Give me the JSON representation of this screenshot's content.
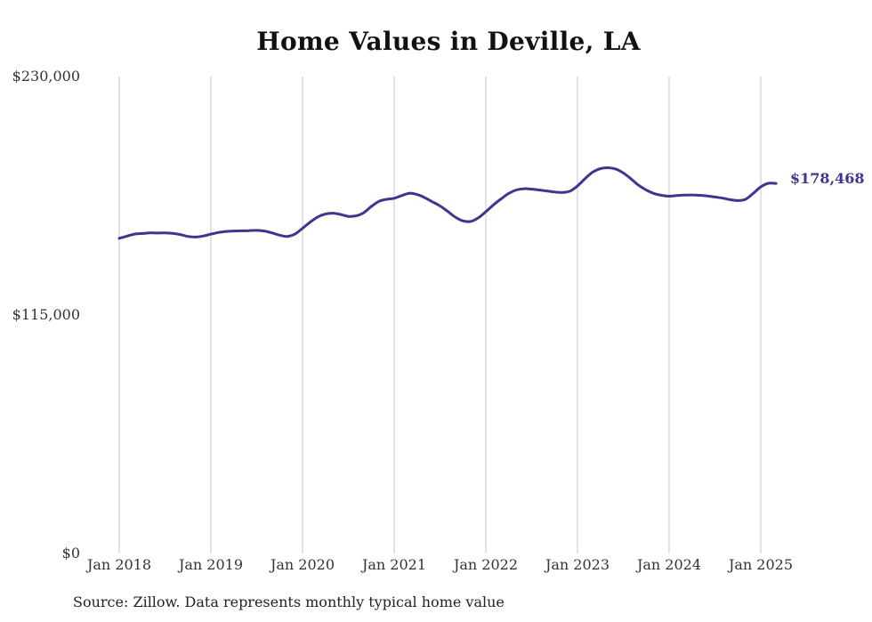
{
  "chart_data": {
    "type": "line",
    "title": "Home Values in Deville, LA",
    "xlabel": "",
    "ylabel": "",
    "ylim": [
      0,
      230000
    ],
    "y_ticks": [
      "$0",
      "$115,000",
      "$230,000"
    ],
    "y_tick_values": [
      0,
      115000,
      230000
    ],
    "x_ticks": [
      "Jan 2018",
      "Jan 2019",
      "Jan 2020",
      "Jan 2021",
      "Jan 2022",
      "Jan 2023",
      "Jan 2024",
      "Jan 2025"
    ],
    "x_tick_values": [
      "2018-01",
      "2019-01",
      "2020-01",
      "2021-01",
      "2022-01",
      "2023-01",
      "2024-01",
      "2025-01"
    ],
    "grid": "vertical",
    "end_label": "$178,468",
    "series": [
      {
        "color": "#3d3590",
        "x": [
          "2018-01",
          "2018-02",
          "2018-03",
          "2018-04",
          "2018-05",
          "2018-06",
          "2018-07",
          "2018-08",
          "2018-09",
          "2018-10",
          "2018-11",
          "2018-12",
          "2019-01",
          "2019-02",
          "2019-03",
          "2019-04",
          "2019-05",
          "2019-06",
          "2019-07",
          "2019-08",
          "2019-09",
          "2019-10",
          "2019-11",
          "2019-12",
          "2020-01",
          "2020-02",
          "2020-03",
          "2020-04",
          "2020-05",
          "2020-06",
          "2020-07",
          "2020-08",
          "2020-09",
          "2020-10",
          "2020-11",
          "2020-12",
          "2021-01",
          "2021-02",
          "2021-03",
          "2021-04",
          "2021-05",
          "2021-06",
          "2021-07",
          "2021-08",
          "2021-09",
          "2021-10",
          "2021-11",
          "2021-12",
          "2022-01",
          "2022-02",
          "2022-03",
          "2022-04",
          "2022-05",
          "2022-06",
          "2022-07",
          "2022-08",
          "2022-09",
          "2022-10",
          "2022-11",
          "2022-12",
          "2023-01",
          "2023-02",
          "2023-03",
          "2023-04",
          "2023-05",
          "2023-06",
          "2023-07",
          "2023-08",
          "2023-09",
          "2023-10",
          "2023-11",
          "2023-12",
          "2024-01",
          "2024-02",
          "2024-03",
          "2024-04",
          "2024-05",
          "2024-06",
          "2024-07",
          "2024-08",
          "2024-09",
          "2024-10",
          "2024-11",
          "2024-12",
          "2025-01",
          "2025-02",
          "2025-03"
        ],
        "values": [
          152000,
          153000,
          154000,
          154300,
          154600,
          154500,
          154600,
          154400,
          153800,
          152900,
          152600,
          153100,
          154000,
          154800,
          155300,
          155500,
          155600,
          155700,
          155800,
          155500,
          154600,
          153500,
          152900,
          154000,
          156800,
          159800,
          162300,
          163700,
          164100,
          163500,
          162600,
          162800,
          164300,
          167300,
          169800,
          170800,
          171300,
          172600,
          173700,
          173100,
          171600,
          169600,
          167600,
          165000,
          162200,
          160400,
          160100,
          161800,
          164800,
          168100,
          171000,
          173600,
          175300,
          175900,
          175700,
          175300,
          174800,
          174300,
          174100,
          174700,
          177200,
          180800,
          183900,
          185600,
          186000,
          185400,
          183500,
          180700,
          177600,
          175300,
          173600,
          172700,
          172300,
          172600,
          172800,
          172900,
          172700,
          172400,
          171900,
          171400,
          170600,
          170200,
          170800,
          173600,
          176800,
          178500,
          178468
        ]
      }
    ]
  },
  "footer": {
    "source": "Source: Zillow. Data represents monthly typical home value"
  }
}
